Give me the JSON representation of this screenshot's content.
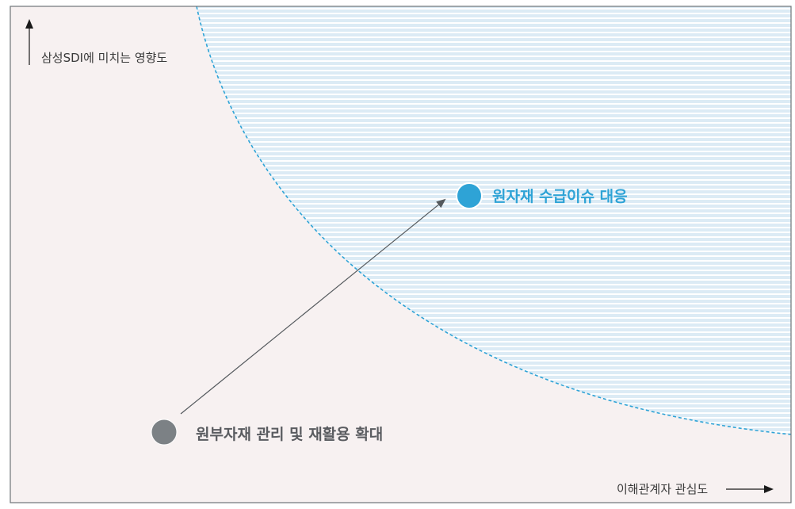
{
  "diagram": {
    "y_axis_label": "삼성SDI에 미치는 영향도",
    "x_axis_label": "이해관계자 관심도",
    "items": {
      "current": {
        "label": "원부자재 관리 및 재활용 확대"
      },
      "target": {
        "label": "원자재 수급이슈 대응"
      }
    }
  },
  "colors": {
    "background": "#f7f1f1",
    "frame": "#6f7478",
    "highlight_fill": "#dcebf5",
    "highlight_stripe": "#ffffff",
    "highlight_boundary": "#2ea3d6",
    "current_dot": "#7c8185",
    "target_dot": "#2ea3d6",
    "arrow": "#555a5e"
  }
}
